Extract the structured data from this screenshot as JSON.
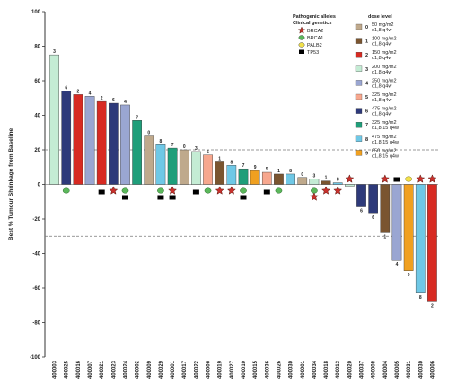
{
  "chart_data": {
    "type": "bar",
    "ylabel": "Best % Tumour Shrinkage from Baseline",
    "ylim": [
      -100,
      100
    ],
    "yticks": [
      -100,
      -80,
      -60,
      -40,
      -20,
      0,
      20,
      40,
      60,
      80,
      100
    ],
    "reference_lines": [
      20,
      -30
    ],
    "legend": {
      "mutation_title_1": "Pathogenic alleles",
      "mutation_title_2": "Clinical genetics",
      "mutations": [
        {
          "key": "brca2",
          "label": "BRCA2",
          "marker": "star",
          "color": "#c9302c"
        },
        {
          "key": "brca1",
          "label": "BRCA1",
          "marker": "ellipse",
          "color": "#5bb85b"
        },
        {
          "key": "palb2",
          "label": "PALB2",
          "marker": "ellipse",
          "color": "#f2e14a"
        },
        {
          "key": "tp53",
          "label": "TP53",
          "marker": "rect",
          "color": "#000000"
        }
      ],
      "dose_title": "dose level",
      "doses": [
        {
          "level": "0",
          "line1": "50 mg/m2",
          "line2": "d1,8 q4w",
          "color": "#bfa98c"
        },
        {
          "level": "1",
          "line1": "100 mg/m2",
          "line2": "d1,8 q4w",
          "color": "#7a5530"
        },
        {
          "level": "2",
          "line1": "150 mg/m2",
          "line2": "d1,8 q4w",
          "color": "#d72a22"
        },
        {
          "level": "3",
          "line1": "200 mg/m2",
          "line2": "d1,8 q4w",
          "color": "#c4ecd4"
        },
        {
          "level": "4",
          "line1": "250 mg/m2",
          "line2": "d1,8 q4w",
          "color": "#9aa6d2"
        },
        {
          "level": "5",
          "line1": "325 mg/m2",
          "line2": "d1,8 q4w",
          "color": "#f7a78e"
        },
        {
          "level": "6",
          "line1": "475 mg/m2",
          "line2": "d1,8 q4w",
          "color": "#2e3a7a"
        },
        {
          "level": "7",
          "line1": "325 mg/m2",
          "line2": "d1,8,15 q4w",
          "color": "#1f9e7a"
        },
        {
          "level": "8",
          "line1": "475 mg/m2",
          "line2": "d1,8,15 q4w",
          "color": "#6fc8e6"
        },
        {
          "level": "9",
          "line1": "650 mg/m2",
          "line2": "d1,8,15 q4w",
          "color": "#f0a020"
        }
      ]
    },
    "bars": [
      {
        "id": "400003",
        "value": 75,
        "dose": "3",
        "label": "3",
        "marker": null,
        "tp53": false
      },
      {
        "id": "400025",
        "value": 54,
        "dose": "6",
        "label": "6",
        "marker": "brca1",
        "tp53": false
      },
      {
        "id": "400016",
        "value": 52,
        "dose": "2",
        "label": "2",
        "marker": null,
        "tp53": false
      },
      {
        "id": "400007",
        "value": 51,
        "dose": "4",
        "label": "4",
        "marker": null,
        "tp53": false
      },
      {
        "id": "400021",
        "value": 48,
        "dose": "2",
        "label": "2",
        "marker": null,
        "tp53": true
      },
      {
        "id": "400023",
        "value": 47,
        "dose": "6",
        "label": "6",
        "marker": "brca2",
        "tp53": false
      },
      {
        "id": "400024",
        "value": 46,
        "dose": "4",
        "label": "4",
        "marker": "brca1",
        "tp53": true
      },
      {
        "id": "400002",
        "value": 37,
        "dose": "7",
        "label": "7",
        "marker": null,
        "tp53": false
      },
      {
        "id": "400009",
        "value": 28,
        "dose": "0",
        "label": "0",
        "marker": null,
        "tp53": false
      },
      {
        "id": "400029",
        "value": 23,
        "dose": "8",
        "label": "8",
        "marker": "brca1",
        "tp53": true
      },
      {
        "id": "400001",
        "value": 21,
        "dose": "7",
        "label": "7",
        "marker": "brca2",
        "tp53": true
      },
      {
        "id": "400017",
        "value": 20,
        "dose": "0",
        "label": "0",
        "marker": null,
        "tp53": false
      },
      {
        "id": "400022",
        "value": 19,
        "dose": "3",
        "label": "3",
        "marker": null,
        "tp53": true
      },
      {
        "id": "400006",
        "value": 17,
        "dose": "5",
        "label": "5",
        "marker": "brca1",
        "tp53": false
      },
      {
        "id": "400019",
        "value": 13,
        "dose": "1",
        "label": "1",
        "marker": "brca2",
        "tp53": false
      },
      {
        "id": "400027",
        "value": 11,
        "dose": "8",
        "label": "8",
        "marker": "brca2",
        "tp53": false
      },
      {
        "id": "400010",
        "value": 9,
        "dose": "7",
        "label": "7",
        "marker": "brca1",
        "tp53": true
      },
      {
        "id": "400015",
        "value": 8,
        "dose": "9",
        "label": "9",
        "marker": null,
        "tp53": false
      },
      {
        "id": "400036",
        "value": 7,
        "dose": "5",
        "label": "5",
        "marker": null,
        "tp53": true
      },
      {
        "id": "400026",
        "value": 6,
        "dose": "1",
        "label": "1",
        "marker": "brca1",
        "tp53": false
      },
      {
        "id": "400030",
        "value": 6,
        "dose": "8",
        "label": "8",
        "marker": null,
        "tp53": false
      },
      {
        "id": "400001",
        "value": 4,
        "dose": "0",
        "label": "0",
        "marker": null,
        "tp53": false
      },
      {
        "id": "400034",
        "value": 3,
        "dose": "3",
        "label": "3",
        "marker": "brca1",
        "tp53": false,
        "extra_marker": "brca2"
      },
      {
        "id": "400018",
        "value": 2,
        "dose": "1",
        "label": "1",
        "marker": "brca2",
        "tp53": false
      },
      {
        "id": "400013",
        "value": 1,
        "dose": "8",
        "label": "8",
        "marker": "brca2",
        "tp53": false
      },
      {
        "id": "400020",
        "value": -1,
        "dose": "3",
        "label": "",
        "marker": "brca2",
        "tp53": false
      },
      {
        "id": "400037",
        "value": -13,
        "dose": "6",
        "label": "6",
        "marker": null,
        "tp53": false
      },
      {
        "id": "400008",
        "value": -17,
        "dose": "6",
        "label": "6",
        "marker": null,
        "tp53": false
      },
      {
        "id": "400004",
        "value": -28,
        "dose": "1",
        "label": "1",
        "marker": "brca2",
        "tp53": false
      },
      {
        "id": "400005",
        "value": -44,
        "dose": "4",
        "label": "4",
        "marker": null,
        "tp53": true
      },
      {
        "id": "400031",
        "value": -50,
        "dose": "9",
        "label": "9",
        "marker": "palb2",
        "tp53": false
      },
      {
        "id": "400030",
        "value": -63,
        "dose": "8",
        "label": "8",
        "marker": "brca2",
        "tp53": false
      },
      {
        "id": "400006",
        "value": -68,
        "dose": "2",
        "label": "2",
        "marker": "brca2",
        "tp53": false
      }
    ]
  }
}
